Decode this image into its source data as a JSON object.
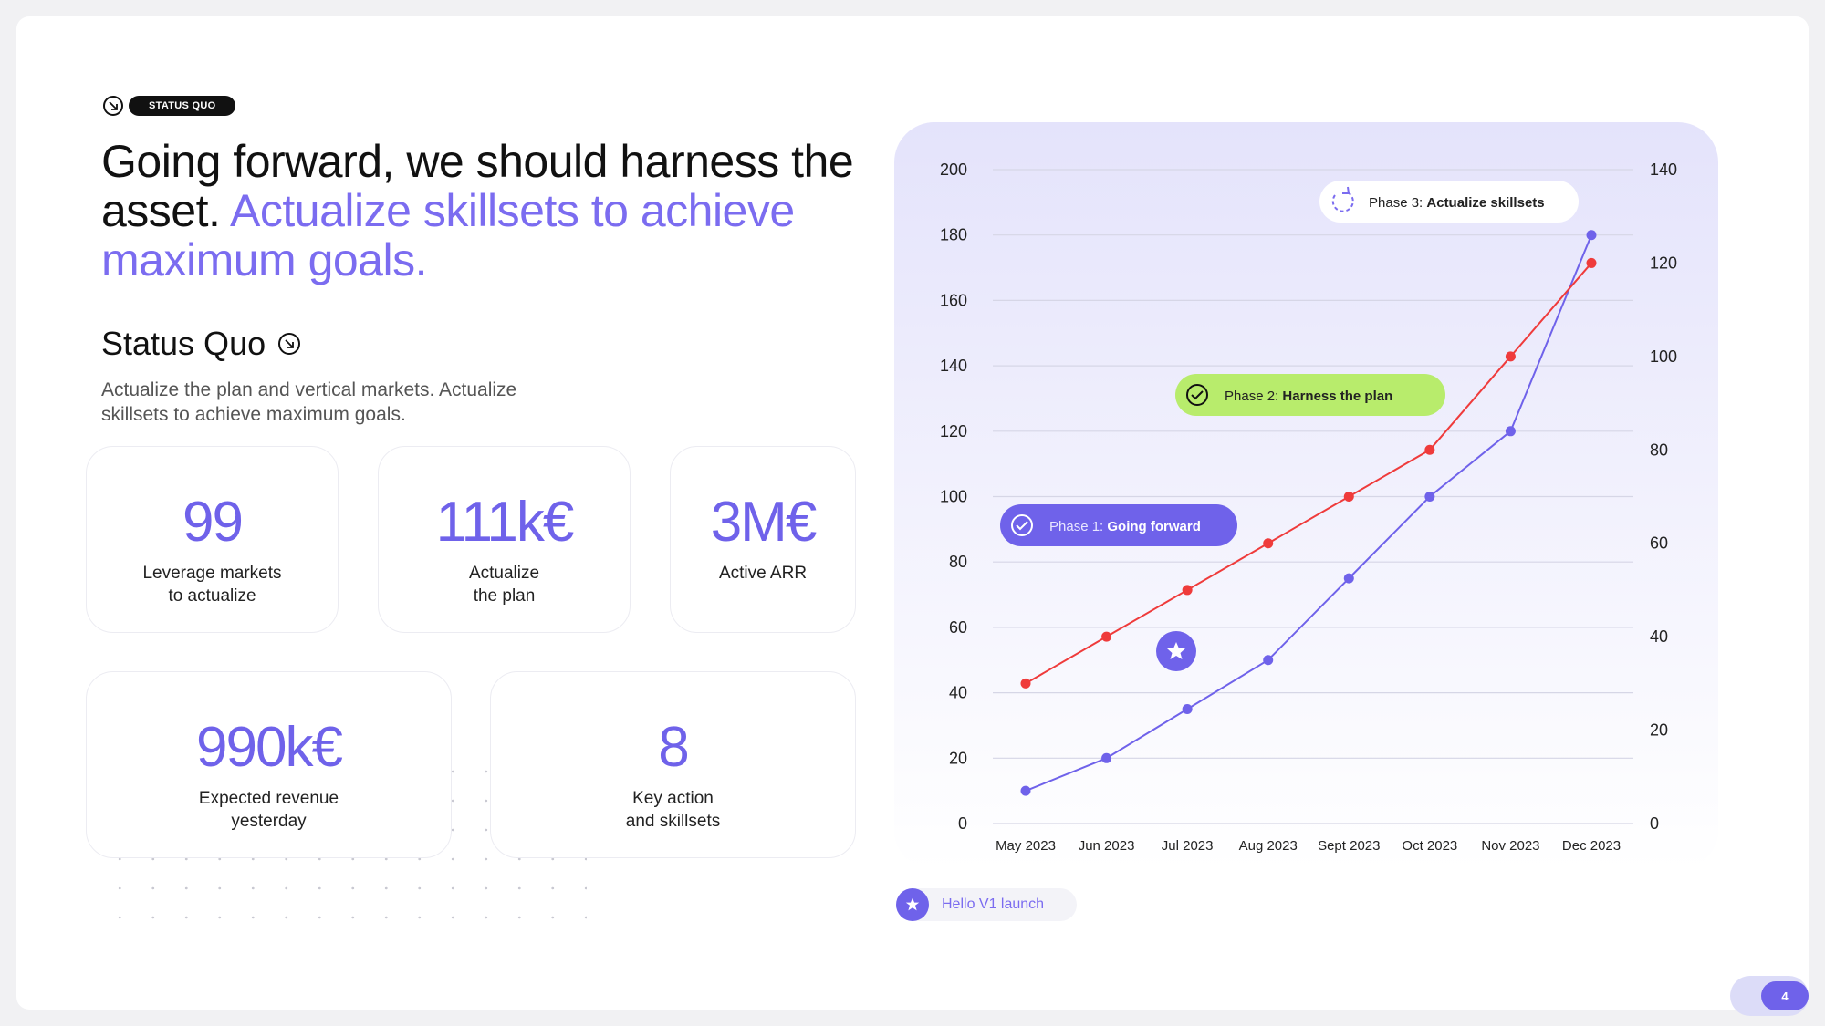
{
  "header": {
    "badge": "STATUS QUO",
    "headline_main": "Going forward, we should harness the asset.",
    "headline_accent": "Actualize skillsets to achieve maximum goals."
  },
  "section": {
    "title": "Status Quo",
    "description": "Actualize the plan and vertical markets. Actualize skillsets to achieve maximum goals."
  },
  "stats": [
    {
      "value": "99",
      "label": "Leverage markets\nto actualize"
    },
    {
      "value": "111k€",
      "label": "Actualize\nthe plan"
    },
    {
      "value": "3M€",
      "label": "Active ARR"
    },
    {
      "value": "990k€",
      "label": "Expected revenue\nyesterday"
    },
    {
      "value": "8",
      "label": "Key action\nand skillsets"
    }
  ],
  "chart_data": {
    "type": "line",
    "categories": [
      "May 2023",
      "Jun 2023",
      "Jul 2023",
      "Aug 2023",
      "Sept 2023",
      "Oct 2023",
      "Nov 2023",
      "Dec 2023"
    ],
    "left_axis": {
      "ticks": [
        0,
        20,
        40,
        60,
        80,
        100,
        120,
        140,
        160,
        180,
        200
      ],
      "ylim": [
        0,
        200
      ]
    },
    "right_axis": {
      "ticks": [
        0,
        20,
        40,
        60,
        80,
        100,
        120,
        140
      ],
      "ylim": [
        0,
        140
      ]
    },
    "grid": true,
    "series": [
      {
        "axis": "left",
        "color": "#6f62ea",
        "values": [
          10,
          20,
          35,
          50,
          75,
          100,
          120,
          180
        ]
      },
      {
        "axis": "right",
        "color": "#ef3b3b",
        "values": [
          30,
          40,
          50,
          60,
          70,
          80,
          100,
          120
        ]
      }
    ],
    "annotations": [
      {
        "id": "phase1",
        "prefix": "Phase 1:",
        "strong": "Going forward"
      },
      {
        "id": "phase2",
        "prefix": "Phase 2:",
        "strong": "Harness the plan"
      },
      {
        "id": "phase3",
        "prefix": "Phase 3:",
        "strong": "Actualize skillsets"
      }
    ],
    "marker_note": "Hello V1 launch"
  },
  "colors": {
    "accent": "#6f62ea",
    "red": "#ef3b3b",
    "green": "#b8ec6c"
  },
  "page": {
    "number": "4"
  }
}
